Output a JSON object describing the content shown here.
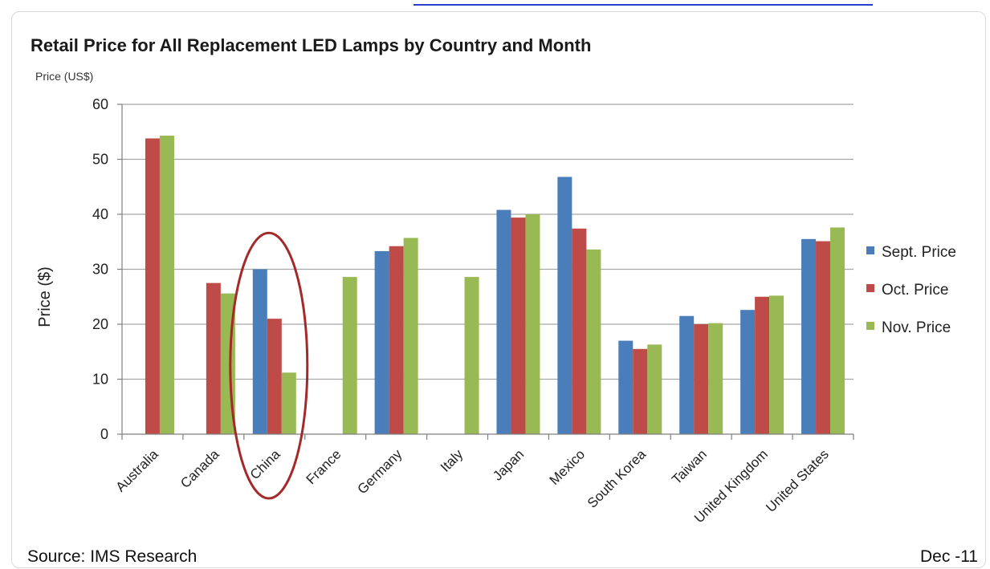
{
  "chart_data": {
    "type": "bar",
    "title": "Retail Price for All Replacement LED Lamps by Country and Month",
    "subtitle": "Price (US$)",
    "ylabel": "Price ($)",
    "xlabel": "",
    "ylim": [
      0,
      60
    ],
    "yticks": [
      0,
      10,
      20,
      30,
      40,
      50,
      60
    ],
    "grid": true,
    "legend_position": "right",
    "categories": [
      "Australia",
      "Canada",
      "China",
      "France",
      "Germany",
      "Italy",
      "Japan",
      "Mexico",
      "South Korea",
      "Taiwan",
      "United Kingdom",
      "United States"
    ],
    "series": [
      {
        "name": "Sept. Price",
        "color": "#4a7ebb",
        "values": [
          null,
          null,
          30,
          null,
          33.3,
          null,
          40.8,
          46.8,
          17,
          21.5,
          22.6,
          35.5
        ]
      },
      {
        "name": "Oct. Price",
        "color": "#be4b48",
        "values": [
          53.8,
          27.5,
          21,
          null,
          34.2,
          null,
          39.4,
          37.4,
          15.5,
          20,
          25,
          35.1
        ]
      },
      {
        "name": "Nov. Price",
        "color": "#98b954",
        "values": [
          54.3,
          25.6,
          11.2,
          28.6,
          35.7,
          28.6,
          40,
          33.6,
          16.3,
          20.2,
          25.2,
          37.6
        ]
      }
    ],
    "annotation": {
      "type": "ellipse",
      "target": "China",
      "color": "#a42a2a"
    },
    "source": "Source: IMS Research",
    "date": "Dec -11"
  }
}
